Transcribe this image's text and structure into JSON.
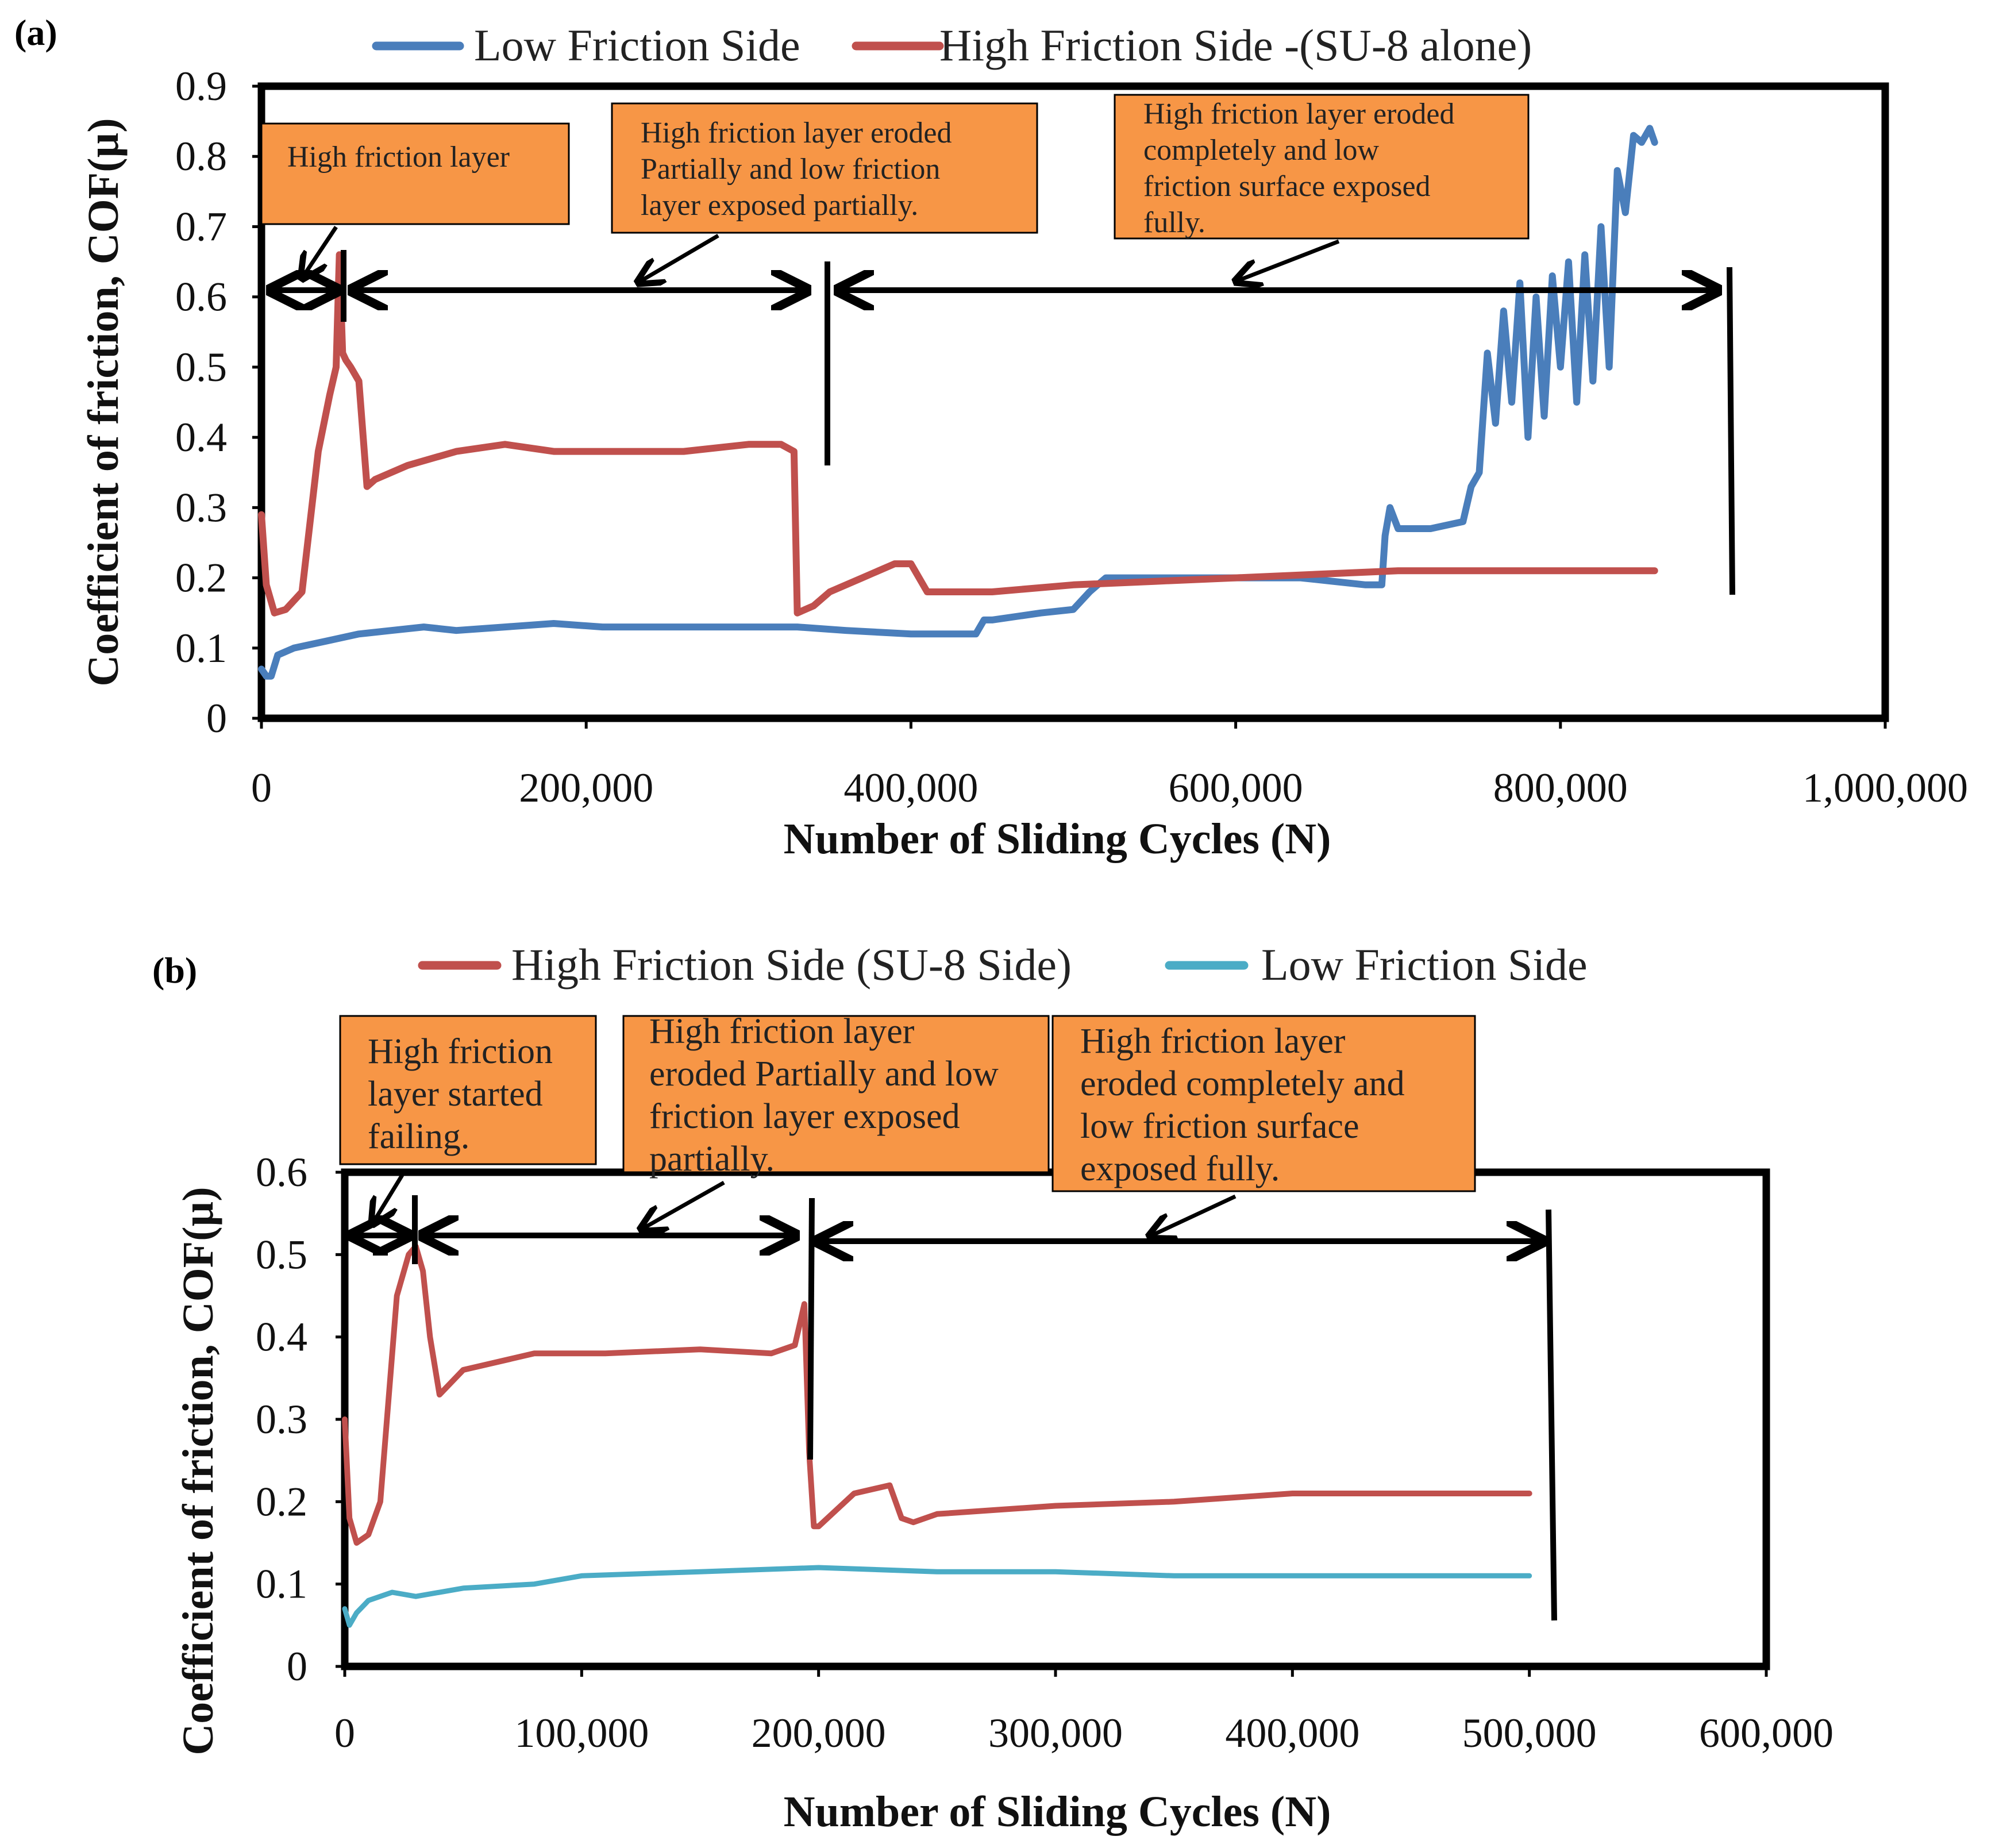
{
  "colors": {
    "low_friction_a": "#4a7ebb",
    "high_friction": "#c0504d",
    "low_friction_b": "#4bacc6",
    "annotation_fill": "#f79646",
    "axis": "#000000"
  },
  "chart_data": [
    {
      "panel": "(a)",
      "type": "line",
      "title": "",
      "xlabel": "Number of Sliding Cycles (N)",
      "ylabel": "Coefficient of friction, COF(µ)",
      "xlim": [
        0,
        1000000
      ],
      "ylim": [
        0,
        0.9
      ],
      "xticks": [
        0,
        200000,
        400000,
        600000,
        800000,
        1000000
      ],
      "xtick_labels": [
        "0",
        "200,000",
        "400,000",
        "600,000",
        "800,000",
        "1,000,000"
      ],
      "yticks": [
        0,
        0.1,
        0.2,
        0.3,
        0.4,
        0.5,
        0.6,
        0.7,
        0.8,
        0.9
      ],
      "ytick_labels": [
        "0",
        "0.1",
        "0.2",
        "0.3",
        "0.4",
        "0.5",
        "0.6",
        "0.7",
        "0.8",
        "0.9"
      ],
      "grid": false,
      "legend_position": "top",
      "series": [
        {
          "name": "Low Friction Side",
          "color": "#4a7ebb",
          "x": [
            0,
            3000,
            6000,
            10000,
            20000,
            40000,
            60000,
            80000,
            100000,
            120000,
            150000,
            180000,
            210000,
            250000,
            300000,
            330000,
            360000,
            400000,
            440000,
            445000,
            450000,
            480000,
            500000,
            510000,
            520000,
            560000,
            600000,
            640000,
            680000,
            690000,
            692000,
            695000,
            700000,
            720000,
            740000,
            745000,
            750000,
            755000,
            760000,
            765000,
            770000,
            775000,
            780000,
            785000,
            790000,
            795000,
            800000,
            805000,
            810000,
            815000,
            820000,
            825000,
            830000,
            835000,
            840000,
            845000,
            850000,
            855000,
            858000
          ],
          "y": [
            0.07,
            0.06,
            0.06,
            0.09,
            0.1,
            0.11,
            0.12,
            0.125,
            0.13,
            0.125,
            0.13,
            0.135,
            0.13,
            0.13,
            0.13,
            0.13,
            0.125,
            0.12,
            0.12,
            0.14,
            0.14,
            0.15,
            0.155,
            0.18,
            0.2,
            0.2,
            0.2,
            0.2,
            0.19,
            0.19,
            0.26,
            0.3,
            0.27,
            0.27,
            0.28,
            0.33,
            0.35,
            0.52,
            0.42,
            0.58,
            0.45,
            0.62,
            0.4,
            0.6,
            0.43,
            0.63,
            0.5,
            0.65,
            0.45,
            0.66,
            0.48,
            0.7,
            0.5,
            0.78,
            0.72,
            0.83,
            0.82,
            0.84,
            0.82
          ]
        },
        {
          "name": "High Friction Side -(SU-8 alone)",
          "color": "#c0504d",
          "x": [
            0,
            3000,
            8000,
            15000,
            25000,
            35000,
            42000,
            46000,
            48000,
            50000,
            52000,
            55000,
            60000,
            65000,
            70000,
            90000,
            120000,
            150000,
            180000,
            220000,
            260000,
            300000,
            320000,
            328000,
            330000,
            340000,
            350000,
            370000,
            390000,
            400000,
            410000,
            450000,
            500000,
            550000,
            600000,
            650000,
            700000,
            750000,
            800000,
            858000
          ],
          "y": [
            0.29,
            0.19,
            0.15,
            0.155,
            0.18,
            0.38,
            0.46,
            0.5,
            0.66,
            0.52,
            0.51,
            0.5,
            0.48,
            0.33,
            0.34,
            0.36,
            0.38,
            0.39,
            0.38,
            0.38,
            0.38,
            0.39,
            0.39,
            0.38,
            0.15,
            0.16,
            0.18,
            0.2,
            0.22,
            0.22,
            0.18,
            0.18,
            0.19,
            0.195,
            0.2,
            0.205,
            0.21,
            0.21,
            0.21,
            0.21
          ]
        }
      ],
      "annotations": [
        "High friction layer",
        "High friction layer eroded Partially and low friction layer exposed partially.",
        "High friction layer eroded completely and low friction surface exposed fully."
      ]
    },
    {
      "panel": "(b)",
      "type": "line",
      "title": "",
      "xlabel": "Number of Sliding Cycles (N)",
      "ylabel": "Coefficient of friction, COF(µ)",
      "xlim": [
        0,
        600000
      ],
      "ylim": [
        0,
        0.6
      ],
      "xticks": [
        0,
        100000,
        200000,
        300000,
        400000,
        500000,
        600000
      ],
      "xtick_labels": [
        "0",
        "100,000",
        "200,000",
        "300,000",
        "400,000",
        "500,000",
        "600,000"
      ],
      "yticks": [
        0,
        0.1,
        0.2,
        0.3,
        0.4,
        0.5,
        0.6
      ],
      "ytick_labels": [
        "0",
        "0.1",
        "0.2",
        "0.3",
        "0.4",
        "0.5",
        "0.6"
      ],
      "grid": false,
      "legend_position": "top",
      "series": [
        {
          "name": "High Friction Side (SU-8 Side)",
          "color": "#c0504d",
          "x": [
            0,
            2000,
            5000,
            10000,
            15000,
            22000,
            27000,
            30000,
            33000,
            36000,
            40000,
            50000,
            80000,
            110000,
            150000,
            180000,
            190000,
            194000,
            196000,
            198000,
            200000,
            215000,
            230000,
            235000,
            240000,
            250000,
            300000,
            350000,
            400000,
            450000,
            500000
          ],
          "y": [
            0.3,
            0.18,
            0.15,
            0.16,
            0.2,
            0.45,
            0.5,
            0.51,
            0.48,
            0.4,
            0.33,
            0.36,
            0.38,
            0.38,
            0.385,
            0.38,
            0.39,
            0.44,
            0.26,
            0.17,
            0.17,
            0.21,
            0.22,
            0.18,
            0.175,
            0.185,
            0.195,
            0.2,
            0.21,
            0.21,
            0.21
          ]
        },
        {
          "name": "Low Friction Side",
          "color": "#4bacc6",
          "x": [
            0,
            2000,
            5000,
            10000,
            20000,
            30000,
            50000,
            80000,
            100000,
            150000,
            200000,
            250000,
            300000,
            350000,
            400000,
            450000,
            500000
          ],
          "y": [
            0.07,
            0.05,
            0.065,
            0.08,
            0.09,
            0.085,
            0.095,
            0.1,
            0.11,
            0.115,
            0.12,
            0.115,
            0.115,
            0.11,
            0.11,
            0.11,
            0.11
          ]
        }
      ],
      "annotations": [
        "High friction layer started failing.",
        "High friction layer eroded Partially and low friction layer exposed partially.",
        "High friction layer eroded completely and low friction surface exposed fully."
      ]
    }
  ]
}
